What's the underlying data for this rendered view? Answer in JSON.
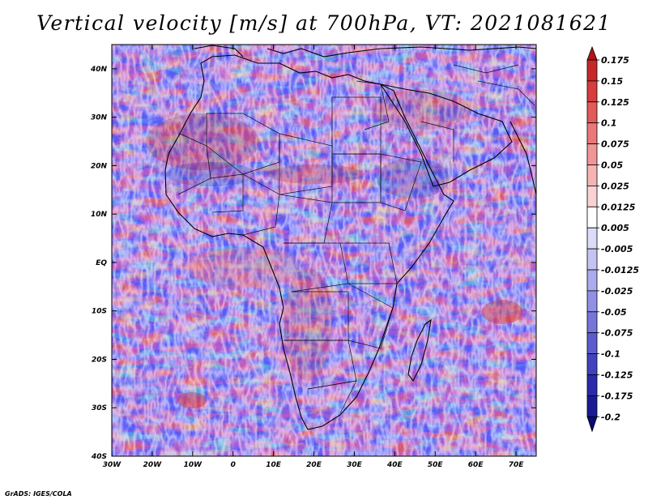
{
  "title": "Vertical velocity [m/s] at 700hPa, VT: 2021081621",
  "credit": "GrADS: IGES/COLA",
  "map": {
    "lon_range": [
      -30,
      75
    ],
    "lat_range": [
      -40,
      45
    ],
    "x_tick_labels": [
      "30W",
      "20W",
      "10W",
      "0",
      "10E",
      "20E",
      "30E",
      "40E",
      "50E",
      "60E",
      "70E"
    ],
    "y_tick_labels": [
      "40S",
      "30S",
      "20S",
      "10S",
      "EQ",
      "10N",
      "20N",
      "30N",
      "40N"
    ],
    "field": "vertical velocity",
    "region": "Africa"
  },
  "colorbar": {
    "labels": [
      "0.175",
      "0.15",
      "0.125",
      "0.1",
      "0.075",
      "0.05",
      "0.025",
      "0.0125",
      "0.005",
      "-0.005",
      "-0.0125",
      "-0.025",
      "-0.05",
      "-0.075",
      "-0.1",
      "-0.125",
      "-0.175",
      "-0.2"
    ],
    "colors": [
      "#b01616",
      "#c62828",
      "#d83c3c",
      "#e35a5a",
      "#ea7878",
      "#f09696",
      "#f5b4b4",
      "#fad2d2",
      "#ffffff",
      "#dcdcf8",
      "#c4c4f2",
      "#aaaaec",
      "#9090e4",
      "#7676da",
      "#5c5cce",
      "#4242c0",
      "#2a2aaa",
      "#1a1a94",
      "#0a0a78"
    ]
  }
}
